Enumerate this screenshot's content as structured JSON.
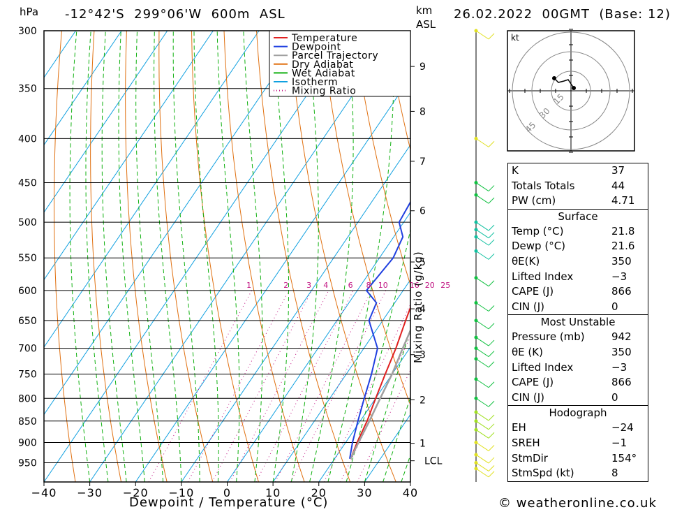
{
  "header": {
    "location": "-12°42'S  299°06'W  600m  ASL",
    "datetime": "26.02.2022  00GMT  (Base: 12)",
    "pressure_unit": "hPa",
    "height_unit": "km",
    "height_unit_ref": "ASL",
    "xlabel": "Dewpoint / Temperature (°C)",
    "mixing_label": "Mixing Ratio (g/kg)",
    "credit": "© weatheronline.co.uk"
  },
  "legend": [
    {
      "label": "Temperature",
      "color": "#e02020"
    },
    {
      "label": "Dewpoint",
      "color": "#2040e0"
    },
    {
      "label": "Parcel Trajectory",
      "color": "#a0a0a0"
    },
    {
      "label": "Dry Adiabat",
      "color": "#e07010"
    },
    {
      "label": "Wet Adiabat",
      "color": "#10b010"
    },
    {
      "label": "Isotherm",
      "color": "#10a0e0"
    },
    {
      "label": "Mixing Ratio",
      "color": "#c01080"
    }
  ],
  "chart_data": {
    "type": "line",
    "x_axis": {
      "label": "Dewpoint / Temperature (°C)",
      "range": [
        -40,
        40
      ],
      "ticks": [
        "−40",
        "−30",
        "−20",
        "−10",
        "0",
        "10",
        "20",
        "30",
        "40"
      ]
    },
    "y_axis": {
      "label": "hPa",
      "scale": "log",
      "range": [
        1000,
        300
      ],
      "ticks": [
        "300",
        "350",
        "400",
        "450",
        "500",
        "550",
        "600",
        "650",
        "700",
        "750",
        "800",
        "850",
        "900",
        "950"
      ]
    },
    "height_ticks_km": [
      {
        "label": "9",
        "p": 330
      },
      {
        "label": "8",
        "p": 372
      },
      {
        "label": "7",
        "p": 425
      },
      {
        "label": "6",
        "p": 485
      },
      {
        "label": "5",
        "p": 556
      },
      {
        "label": "4",
        "p": 630
      },
      {
        "label": "3",
        "p": 712
      },
      {
        "label": "2",
        "p": 803
      },
      {
        "label": "1",
        "p": 902
      },
      {
        "label": "LCL",
        "p": 945
      }
    ],
    "mixing_ratio_labels": [
      "1",
      "2",
      "3",
      "4",
      "6",
      "8",
      "10",
      "16",
      "20",
      "25"
    ],
    "series": [
      {
        "name": "Temperature",
        "points": [
          [
            23.5,
            940
          ],
          [
            22.5,
            900
          ],
          [
            21.5,
            850
          ],
          [
            20,
            800
          ],
          [
            18.5,
            750
          ],
          [
            17,
            700
          ],
          [
            15,
            650
          ],
          [
            13,
            600
          ],
          [
            11.5,
            550
          ],
          [
            9.5,
            500
          ],
          [
            8,
            450
          ],
          [
            6,
            400
          ],
          [
            0,
            350
          ]
        ]
      },
      {
        "name": "Dewpoint",
        "points": [
          [
            23.3,
            940
          ],
          [
            21.5,
            900
          ],
          [
            19.5,
            850
          ],
          [
            17.5,
            800
          ],
          [
            15.5,
            750
          ],
          [
            13,
            700
          ],
          [
            7,
            650
          ],
          [
            6,
            620
          ],
          [
            2,
            600
          ],
          [
            3,
            550
          ],
          [
            2,
            520
          ],
          [
            -1,
            500
          ],
          [
            -2,
            450
          ],
          [
            -9,
            400
          ],
          [
            -13,
            375
          ],
          [
            -12,
            360
          ],
          [
            -13,
            345
          ],
          [
            -21,
            320
          ],
          [
            -22,
            300
          ]
        ]
      },
      {
        "name": "Parcel Trajectory",
        "points": [
          [
            23.5,
            940
          ],
          [
            22.8,
            900
          ],
          [
            22,
            850
          ],
          [
            21,
            800
          ],
          [
            20,
            750
          ],
          [
            18.5,
            700
          ],
          [
            17,
            650
          ],
          [
            15.5,
            600
          ],
          [
            14,
            550
          ],
          [
            12.5,
            500
          ],
          [
            10.5,
            450
          ],
          [
            8,
            400
          ],
          [
            3,
            360
          ]
        ]
      }
    ]
  },
  "hodograph": {
    "unit": "kt",
    "ring_labels": [
      "15",
      "30",
      "45"
    ]
  },
  "indices": {
    "top": [
      {
        "label": "K",
        "value": "37"
      },
      {
        "label": "Totals Totals",
        "value": "44"
      },
      {
        "label": "PW (cm)",
        "value": "4.71"
      }
    ],
    "surface": {
      "title": "Surface",
      "rows": [
        {
          "label": "Temp (°C)",
          "value": "21.8"
        },
        {
          "label": "Dewp (°C)",
          "value": "21.6"
        },
        {
          "label": "θE(K)",
          "value": "350"
        },
        {
          "label": "Lifted Index",
          "value": "−3"
        },
        {
          "label": "CAPE (J)",
          "value": "866"
        },
        {
          "label": "CIN (J)",
          "value": "0"
        }
      ]
    },
    "most_unstable": {
      "title": "Most Unstable",
      "rows": [
        {
          "label": "Pressure (mb)",
          "value": "942"
        },
        {
          "label": "θE (K)",
          "value": "350"
        },
        {
          "label": "Lifted Index",
          "value": "−3"
        },
        {
          "label": "CAPE (J)",
          "value": "866"
        },
        {
          "label": "CIN (J)",
          "value": "0"
        }
      ]
    },
    "hodograph_table": {
      "title": "Hodograph",
      "rows": [
        {
          "label": "EH",
          "value": "−24"
        },
        {
          "label": "SREH",
          "value": "−1"
        },
        {
          "label": "StmDir",
          "value": "154°"
        },
        {
          "label": "StmSpd (kt)",
          "value": "8"
        }
      ]
    }
  }
}
